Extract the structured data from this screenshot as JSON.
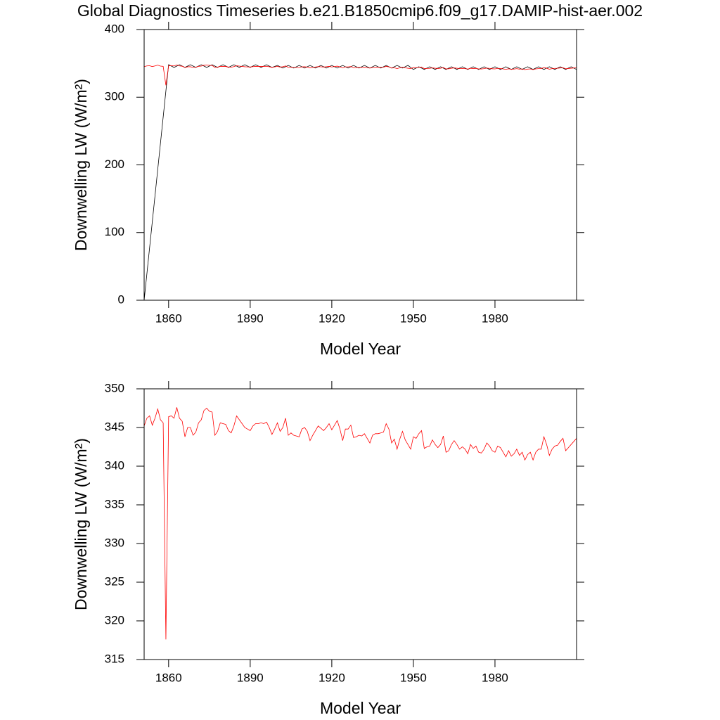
{
  "chart_data": [
    {
      "type": "line",
      "title": "Global Diagnostics Timeseries b.e21.B1850cmip6.f09_g17.DAMIP-hist-aer.002",
      "x_label": "Model Year",
      "y_label": "Downwelling LW (W/m²)",
      "xlim": [
        1851,
        2010
      ],
      "xticks": [
        1860,
        1890,
        1920,
        1950,
        1980
      ],
      "ylim": [
        0,
        400
      ],
      "yticks": [
        0,
        100,
        200,
        300,
        400
      ],
      "series": [
        {
          "color": "#000000",
          "x": [
            1851,
            1860,
            1862,
            1864,
            1866,
            1868,
            1870,
            1872,
            1874,
            1876,
            1878,
            1880,
            1882,
            1884,
            1886,
            1888,
            1890,
            1892,
            1894,
            1896,
            1898,
            1900,
            1902,
            1904,
            1906,
            1908,
            1910,
            1912,
            1914,
            1916,
            1918,
            1920,
            1922,
            1924,
            1926,
            1928,
            1930,
            1932,
            1934,
            1936,
            1938,
            1940,
            1942,
            1944,
            1946,
            1948,
            1950,
            1952,
            1954,
            1956,
            1958,
            1960,
            1962,
            1964,
            1966,
            1968,
            1970,
            1972,
            1974,
            1976,
            1978,
            1980,
            1982,
            1984,
            1986,
            1988,
            1990,
            1992,
            1994,
            1996,
            1998,
            2000,
            2002,
            2004,
            2006,
            2008,
            2010
          ],
          "values": [
            0,
            348,
            344,
            348,
            344,
            348,
            344,
            348,
            344,
            348,
            344,
            348,
            344,
            348,
            344,
            348,
            344,
            348,
            344,
            348,
            344,
            347,
            343,
            347,
            343,
            347,
            343,
            347,
            343,
            347,
            343,
            347,
            343,
            347,
            343,
            347,
            343,
            347,
            343,
            347,
            343,
            347,
            343,
            347,
            343,
            347,
            341,
            345,
            341,
            345,
            341,
            345,
            341,
            345,
            341,
            345,
            341,
            345,
            341,
            345,
            341,
            345,
            341,
            345,
            341,
            345,
            341,
            345,
            341,
            345,
            341,
            345,
            341,
            345,
            341,
            345,
            341
          ]
        },
        {
          "color": "#ff0000",
          "x": [
            1851,
            1852,
            1853,
            1854,
            1855,
            1856,
            1857,
            1858,
            1859,
            1860,
            1861,
            1862,
            1863,
            1864,
            1865,
            1866,
            1867,
            1868,
            1869,
            1870,
            1871,
            1872,
            1873,
            1874,
            1875,
            1876,
            1877,
            1878,
            1879,
            1880,
            1881,
            1882,
            1883,
            1884,
            1885,
            1886,
            1887,
            1888,
            1889,
            1890,
            1891,
            1892,
            1893,
            1894,
            1895,
            1896,
            1897,
            1898,
            1899,
            1900,
            1901,
            1902,
            1903,
            1904,
            1905,
            1906,
            1907,
            1908,
            1909,
            1910,
            1911,
            1912,
            1913,
            1914,
            1915,
            1916,
            1917,
            1918,
            1919,
            1920,
            1921,
            1922,
            1923,
            1924,
            1925,
            1926,
            1927,
            1928,
            1929,
            1930,
            1931,
            1932,
            1933,
            1934,
            1935,
            1936,
            1937,
            1938,
            1939,
            1940,
            1941,
            1942,
            1943,
            1944,
            1945,
            1946,
            1947,
            1948,
            1949,
            1950,
            1951,
            1952,
            1953,
            1954,
            1955,
            1956,
            1957,
            1958,
            1959,
            1960,
            1961,
            1962,
            1963,
            1964,
            1965,
            1966,
            1967,
            1968,
            1969,
            1970,
            1971,
            1972,
            1973,
            1974,
            1975,
            1976,
            1977,
            1978,
            1979,
            1980,
            1981,
            1982,
            1983,
            1984,
            1985,
            1986,
            1987,
            1988,
            1989,
            1990,
            1991,
            1992,
            1993,
            1994,
            1995,
            1996,
            1997,
            1998,
            1999,
            2000,
            2001,
            2002,
            2003,
            2004,
            2005,
            2006,
            2007,
            2008,
            2009,
            2010
          ],
          "values": [
            345.2,
            346.2,
            346.5,
            345.3,
            346.2,
            347.4,
            346,
            345.6,
            317.6,
            346.4,
            346.5,
            346.2,
            347.6,
            346.2,
            345.8,
            343.8,
            345,
            345,
            344,
            344.4,
            345.6,
            346,
            347.2,
            347.5,
            347.1,
            347,
            344,
            344.5,
            345.6,
            345.5,
            345.4,
            344.6,
            344.3,
            345.2,
            346.5,
            346,
            345.5,
            345,
            344.8,
            344.6,
            345.2,
            345.5,
            345.5,
            345.6,
            345.5,
            345.7,
            345,
            344.1,
            344.8,
            345.6,
            344.5,
            345,
            346.2,
            344,
            344.3,
            344,
            343.9,
            343.8,
            344.8,
            345,
            344.5,
            343.3,
            344,
            344.6,
            345.2,
            344.9,
            344.6,
            345,
            345.5,
            344.7,
            345.3,
            345.9,
            344.8,
            343.3,
            344.8,
            344.8,
            345.3,
            343.7,
            343.8,
            344,
            343.9,
            344.2,
            343.6,
            343,
            344,
            344.2,
            344.2,
            344.3,
            344.4,
            345.5,
            344.8,
            343,
            343.5,
            342.2,
            343.5,
            344.5,
            343.4,
            342.8,
            342.2,
            343.8,
            343.6,
            344.2,
            344.6,
            342.3,
            342.5,
            342.6,
            343.4,
            342.8,
            342.4,
            342.8,
            343.9,
            341.8,
            342,
            342.8,
            343.3,
            342.8,
            342.2,
            342.5,
            342.2,
            341.6,
            342.8,
            342.3,
            342.6,
            341.8,
            341.7,
            342.2,
            343,
            342.6,
            342,
            341.8,
            342.6,
            342.4,
            341.8,
            341.2,
            342,
            341.3,
            341.6,
            342.2,
            341.4,
            341.8,
            340.8,
            341.5,
            341.8,
            340.8,
            341.8,
            342.2,
            342.2,
            343.8,
            342.8,
            341.4,
            342.2,
            342.6,
            342.7,
            343.2,
            343.6,
            342,
            342.4,
            342.8,
            343.2,
            343.6
          ]
        }
      ]
    },
    {
      "type": "line",
      "x_label": "Model Year",
      "y_label": "Downwelling LW (W/m²)",
      "xlim": [
        1851,
        2010
      ],
      "xticks": [
        1860,
        1890,
        1920,
        1950,
        1980
      ],
      "ylim": [
        315,
        350
      ],
      "yticks": [
        315,
        320,
        325,
        330,
        335,
        340,
        345,
        350
      ],
      "series": [
        {
          "color": "#ff0000",
          "x": [
            1851,
            1852,
            1853,
            1854,
            1855,
            1856,
            1857,
            1858,
            1859,
            1860,
            1861,
            1862,
            1863,
            1864,
            1865,
            1866,
            1867,
            1868,
            1869,
            1870,
            1871,
            1872,
            1873,
            1874,
            1875,
            1876,
            1877,
            1878,
            1879,
            1880,
            1881,
            1882,
            1883,
            1884,
            1885,
            1886,
            1887,
            1888,
            1889,
            1890,
            1891,
            1892,
            1893,
            1894,
            1895,
            1896,
            1897,
            1898,
            1899,
            1900,
            1901,
            1902,
            1903,
            1904,
            1905,
            1906,
            1907,
            1908,
            1909,
            1910,
            1911,
            1912,
            1913,
            1914,
            1915,
            1916,
            1917,
            1918,
            1919,
            1920,
            1921,
            1922,
            1923,
            1924,
            1925,
            1926,
            1927,
            1928,
            1929,
            1930,
            1931,
            1932,
            1933,
            1934,
            1935,
            1936,
            1937,
            1938,
            1939,
            1940,
            1941,
            1942,
            1943,
            1944,
            1945,
            1946,
            1947,
            1948,
            1949,
            1950,
            1951,
            1952,
            1953,
            1954,
            1955,
            1956,
            1957,
            1958,
            1959,
            1960,
            1961,
            1962,
            1963,
            1964,
            1965,
            1966,
            1967,
            1968,
            1969,
            1970,
            1971,
            1972,
            1973,
            1974,
            1975,
            1976,
            1977,
            1978,
            1979,
            1980,
            1981,
            1982,
            1983,
            1984,
            1985,
            1986,
            1987,
            1988,
            1989,
            1990,
            1991,
            1992,
            1993,
            1994,
            1995,
            1996,
            1997,
            1998,
            1999,
            2000,
            2001,
            2002,
            2003,
            2004,
            2005,
            2006,
            2007,
            2008,
            2009,
            2010
          ],
          "values": [
            345.2,
            346.2,
            346.5,
            345.3,
            346.2,
            347.4,
            346,
            345.6,
            317.6,
            346.4,
            346.5,
            346.2,
            347.6,
            346.2,
            345.8,
            343.8,
            345,
            345,
            344,
            344.4,
            345.6,
            346,
            347.2,
            347.5,
            347.1,
            347,
            344,
            344.5,
            345.6,
            345.5,
            345.4,
            344.6,
            344.3,
            345.2,
            346.5,
            346,
            345.5,
            345,
            344.8,
            344.6,
            345.2,
            345.5,
            345.5,
            345.6,
            345.5,
            345.7,
            345,
            344.1,
            344.8,
            345.6,
            344.5,
            345,
            346.2,
            344,
            344.3,
            344,
            343.9,
            343.8,
            344.8,
            345,
            344.5,
            343.3,
            344,
            344.6,
            345.2,
            344.9,
            344.6,
            345,
            345.5,
            344.7,
            345.3,
            345.9,
            344.8,
            343.3,
            344.8,
            344.8,
            345.3,
            343.7,
            343.8,
            344,
            343.9,
            344.2,
            343.6,
            343,
            344,
            344.2,
            344.2,
            344.3,
            344.4,
            345.5,
            344.8,
            343,
            343.5,
            342.2,
            343.5,
            344.5,
            343.4,
            342.8,
            342.2,
            343.8,
            343.6,
            344.2,
            344.6,
            342.3,
            342.5,
            342.6,
            343.4,
            342.8,
            342.4,
            342.8,
            343.9,
            341.8,
            342,
            342.8,
            343.3,
            342.8,
            342.2,
            342.5,
            342.2,
            341.6,
            342.8,
            342.3,
            342.6,
            341.8,
            341.7,
            342.2,
            343,
            342.6,
            342,
            341.8,
            342.6,
            342.4,
            341.8,
            341.2,
            342,
            341.3,
            341.6,
            342.2,
            341.4,
            341.8,
            340.8,
            341.5,
            341.8,
            340.8,
            341.8,
            342.2,
            342.2,
            343.8,
            342.8,
            341.4,
            342.2,
            342.6,
            342.7,
            343.2,
            343.6,
            342,
            342.4,
            342.8,
            343.2,
            343.6
          ]
        }
      ]
    }
  ]
}
